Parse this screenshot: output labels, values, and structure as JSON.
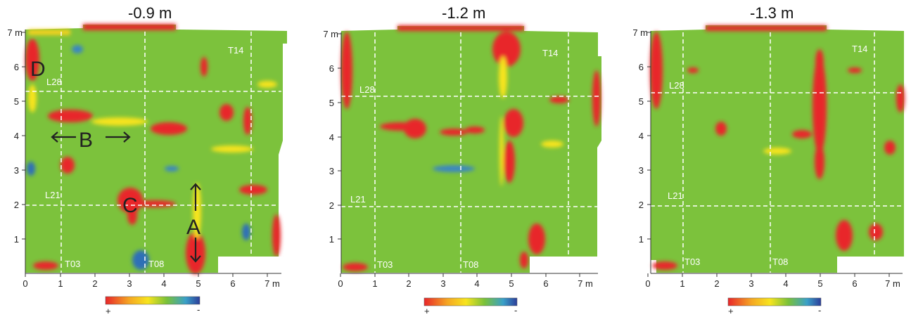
{
  "panels": [
    {
      "title": "-0.9 m",
      "x_ticks": [
        "0",
        "1",
        "2",
        "3",
        "4",
        "5",
        "6",
        "7 m"
      ],
      "y_ticks": [
        "1",
        "2",
        "3",
        "4",
        "5",
        "6",
        "7 m"
      ],
      "grid_labels": {
        "L28": "L28",
        "L21": "L21",
        "T03": "T03",
        "T08": "T08",
        "T14": "T14"
      },
      "annotations": [
        "D",
        "B",
        "C",
        "A"
      ],
      "legend_plus": "+",
      "legend_minus": "-"
    },
    {
      "title": "-1.2 m",
      "x_ticks": [
        "0",
        "1",
        "2",
        "3",
        "4",
        "5",
        "6",
        "7 m"
      ],
      "y_ticks": [
        "1",
        "2",
        "3",
        "4",
        "5",
        "6",
        "7 m"
      ],
      "grid_labels": {
        "L28": "L28",
        "L21": "L21",
        "T03": "T03",
        "T08": "T08",
        "T14": "T14"
      },
      "legend_plus": "+",
      "legend_minus": "-"
    },
    {
      "title": "-1.3 m",
      "x_ticks": [
        "0",
        "1",
        "2",
        "3",
        "4",
        "5",
        "6",
        "7 m"
      ],
      "y_ticks": [
        "1",
        "2",
        "3",
        "4",
        "5",
        "6",
        "7 m"
      ],
      "grid_labels": {
        "L28": "L28",
        "L21": "L21",
        "T03": "T03",
        "T08": "T08",
        "T14": "T14"
      },
      "legend_plus": "+",
      "legend_minus": "-"
    }
  ],
  "colors": {
    "background_field": "#79c13a",
    "high": "#e8262a",
    "mid_high": "#f6d81c",
    "low": "#2f6fb7",
    "scale_stops": [
      "#e8262a",
      "#f5a623",
      "#f7e41e",
      "#79c13a",
      "#3aa0c8",
      "#2c3e9a"
    ]
  }
}
